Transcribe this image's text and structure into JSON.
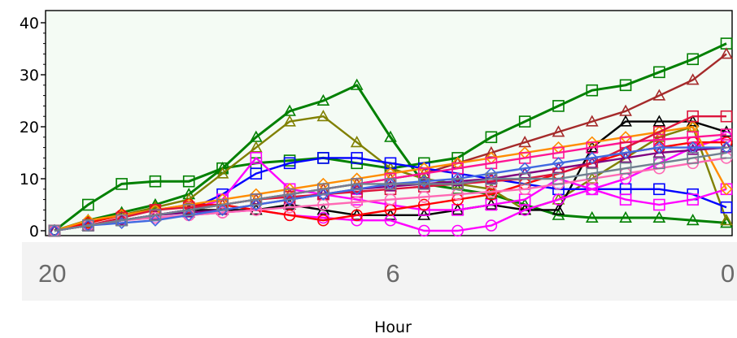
{
  "chart_data": {
    "type": "line",
    "xlabel": "Hour",
    "ylabel": "",
    "ylim": [
      0,
      40
    ],
    "yticks": [
      "0",
      "10",
      "20",
      "30",
      "40"
    ],
    "xlim": [
      20,
      0
    ],
    "xticks": [
      "20",
      "6",
      "0"
    ],
    "grid": false,
    "legend": "none",
    "plot_background": "#f4fbf4",
    "x": [
      20,
      19,
      18,
      17,
      16,
      15,
      14,
      13,
      12,
      11,
      10,
      9,
      8,
      7,
      6,
      5,
      4,
      3,
      2,
      1,
      0
    ],
    "series": [
      {
        "color": "#008000",
        "marker": "square",
        "values": [
          0,
          5,
          9,
          9.5,
          9.5,
          12,
          13,
          13.5,
          14,
          13,
          12,
          13,
          14,
          18,
          21,
          24,
          27,
          28,
          30.5,
          33,
          36
        ]
      },
      {
        "color": "#008000",
        "marker": "triangle",
        "values": [
          0,
          2,
          3.5,
          5,
          7,
          12,
          18,
          23,
          25,
          28,
          18,
          9,
          8,
          7,
          5,
          3,
          2.5,
          2.5,
          2.5,
          2,
          1.5
        ]
      },
      {
        "color": "#808000",
        "marker": "triangle",
        "values": [
          0,
          1.5,
          3,
          4.5,
          6,
          11,
          16,
          21,
          22,
          17,
          12,
          10,
          9,
          8,
          4,
          6,
          10,
          14,
          18,
          20,
          2
        ]
      },
      {
        "color": "#a52a2a",
        "marker": "triangle",
        "values": [
          0,
          1,
          2,
          3,
          4,
          5,
          6,
          7,
          8,
          9,
          10,
          11,
          13,
          15,
          17,
          19,
          21,
          23,
          26,
          29,
          34
        ]
      },
      {
        "color": "#000000",
        "marker": "triangle",
        "values": [
          0,
          1,
          2,
          3,
          4,
          4,
          4,
          5,
          4,
          3,
          3,
          3,
          4,
          5,
          4,
          4,
          16,
          21,
          21,
          21,
          19
        ]
      },
      {
        "color": "#0000ff",
        "marker": "square",
        "values": [
          0,
          1,
          2,
          3,
          4,
          7,
          11,
          13,
          14,
          14,
          13,
          12,
          11,
          10,
          9,
          8,
          8,
          8,
          8,
          7,
          4.5
        ]
      },
      {
        "color": "#ff00ff",
        "marker": "square",
        "values": [
          0,
          1,
          2,
          3,
          4,
          6,
          14,
          8,
          7,
          6,
          5,
          4,
          4,
          5,
          6,
          10,
          8,
          6,
          5,
          6,
          8
        ]
      },
      {
        "color": "#ff00ff",
        "marker": "circle",
        "values": [
          0,
          1,
          2,
          2.5,
          3,
          3.5,
          4,
          3,
          2.5,
          2,
          2,
          0,
          0,
          1,
          4,
          6,
          8,
          10,
          13,
          16,
          18
        ]
      },
      {
        "color": "#ff0000",
        "marker": "circle",
        "values": [
          0,
          1.5,
          3,
          4,
          5,
          5,
          4,
          3,
          2,
          3,
          4,
          5,
          6,
          7,
          9,
          11,
          13,
          15,
          16,
          17,
          17
        ]
      },
      {
        "color": "#ff8c00",
        "marker": "diamond",
        "values": [
          0,
          2,
          3,
          4,
          5,
          6,
          7,
          8,
          9,
          10,
          11,
          12,
          13,
          14,
          15,
          16,
          17,
          18,
          19,
          20,
          8
        ]
      },
      {
        "color": "#ff1493",
        "marker": "square",
        "values": [
          0,
          1,
          2,
          3,
          4,
          5,
          6,
          7,
          8,
          9,
          10,
          11,
          12,
          13,
          14,
          15,
          16,
          17,
          17.5,
          18,
          18.5
        ]
      },
      {
        "color": "#800080",
        "marker": "triangle",
        "values": [
          0,
          1,
          2,
          3,
          3.5,
          4,
          5,
          6,
          7,
          8,
          8.5,
          9,
          9.5,
          10,
          11,
          12,
          13,
          14,
          15,
          15.5,
          16
        ]
      },
      {
        "color": "#dc143c",
        "marker": "square",
        "values": [
          0,
          1,
          2.5,
          4,
          4.5,
          5,
          6,
          6.5,
          7,
          7.5,
          8,
          8.5,
          9,
          9.5,
          10,
          11,
          13,
          16,
          19,
          22,
          22
        ]
      },
      {
        "color": "#ff69b4",
        "marker": "circle",
        "values": [
          0,
          1,
          2,
          2.5,
          3,
          3.5,
          4,
          4.5,
          5,
          5.5,
          6,
          6.5,
          7,
          7.5,
          8,
          9,
          10,
          11,
          12,
          13,
          14
        ]
      },
      {
        "color": "#4169e1",
        "marker": "diamond",
        "values": [
          0,
          1,
          1.5,
          2,
          3,
          4,
          5,
          6,
          7,
          8,
          9,
          9.5,
          10,
          11,
          12,
          13,
          14,
          15,
          16,
          16,
          16
        ]
      },
      {
        "color": "#708090",
        "marker": "square",
        "values": [
          0,
          1,
          2,
          3,
          4,
          5,
          6,
          7,
          8,
          9,
          9,
          9,
          9,
          10,
          10,
          10,
          11,
          12,
          13,
          14,
          15
        ]
      }
    ]
  }
}
